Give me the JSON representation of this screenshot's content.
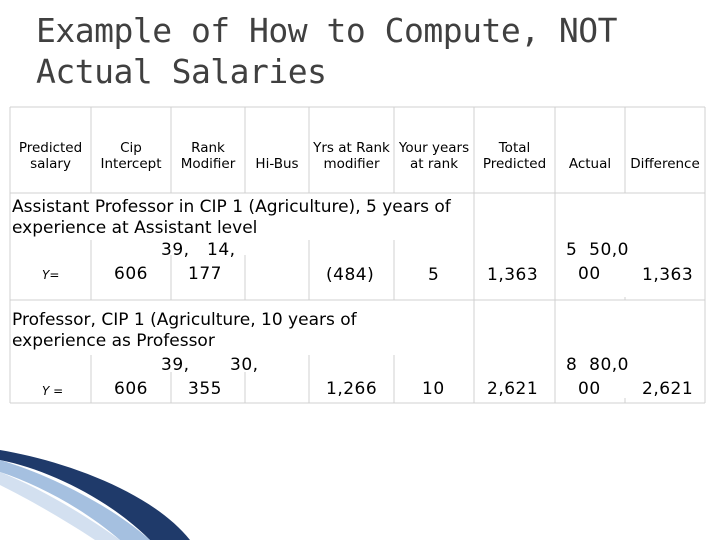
{
  "title": {
    "line1": "Example of How to Compute, NOT",
    "line2": "Actual Salaries"
  },
  "headers": {
    "predicted_salary": [
      "Predicted",
      "salary"
    ],
    "cip_intercept": [
      "Cip",
      "Intercept"
    ],
    "rank_modifier": [
      "Rank",
      "Modifier"
    ],
    "hi_bus": "Hi-Bus",
    "yrs_at_rank": [
      "Yrs at Rank",
      "modifier"
    ],
    "your_years": [
      "Your years",
      "at rank"
    ],
    "total_predicted": [
      "Total",
      "Predicted"
    ],
    "actual": "Actual",
    "difference": "Difference"
  },
  "rows": [
    {
      "description": [
        "Assistant Professor in CIP 1 (Agriculture), 5 years of",
        "experience at Assistant level"
      ],
      "y_label": "Y=",
      "cip_intercept": [
        "39,",
        "606"
      ],
      "rank_modifier": [
        "14,",
        "177"
      ],
      "yrs_modifier": "(484)",
      "your_years": "5",
      "total_predicted": "1,363",
      "actual": [
        "5  50,0",
        "00"
      ],
      "difference": "1,363"
    },
    {
      "description": [
        "Professor, CIP 1 (Agriculture, 10 years of",
        "experience as Professor"
      ],
      "y_label": "Y =",
      "cip_intercept": [
        "39,",
        "606"
      ],
      "rank_modifier": [
        "30,",
        "355"
      ],
      "yrs_modifier": "1,266",
      "your_years": "10",
      "total_predicted": "2,621",
      "actual": [
        "8  80,0",
        "00"
      ],
      "difference": "2,621"
    }
  ],
  "colors": {
    "title": "#404040",
    "grid_line": "#d0d0d0",
    "deco_dark": "#1f3a6a",
    "deco_light": "#8fb0d8"
  }
}
